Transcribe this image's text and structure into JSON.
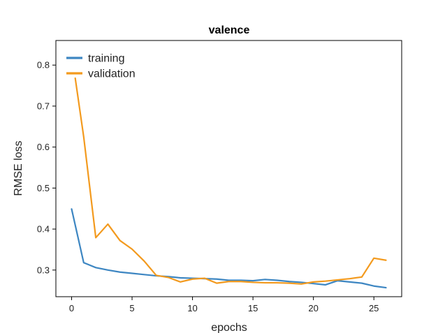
{
  "chart_data": {
    "type": "line",
    "title": "valence",
    "xlabel": "epochs",
    "ylabel": "RMSE loss",
    "xlim": [
      -1.3,
      27.3
    ],
    "ylim": [
      0.235,
      0.86
    ],
    "xticks": [
      0,
      5,
      10,
      15,
      20,
      25
    ],
    "yticks": [
      0.3,
      0.4,
      0.5,
      0.6,
      0.7,
      0.8
    ],
    "ytick_labels": [
      "0.3",
      "0.4",
      "0.5",
      "0.6",
      "0.7",
      "0.8"
    ],
    "grid": false,
    "legend_position": "top-left",
    "series": [
      {
        "name": "training",
        "color": "#3d86c2",
        "x": [
          0,
          1,
          2,
          3,
          4,
          5,
          6,
          7,
          8,
          9,
          10,
          11,
          12,
          13,
          14,
          15,
          16,
          17,
          18,
          19,
          20,
          21,
          22,
          23,
          24,
          25,
          26
        ],
        "y": [
          0.449,
          0.318,
          0.306,
          0.3,
          0.295,
          0.292,
          0.289,
          0.286,
          0.284,
          0.281,
          0.28,
          0.279,
          0.278,
          0.275,
          0.275,
          0.274,
          0.277,
          0.275,
          0.272,
          0.27,
          0.267,
          0.264,
          0.274,
          0.271,
          0.268,
          0.261,
          0.257
        ]
      },
      {
        "name": "validation",
        "color": "#f39a1e",
        "x": [
          0.3,
          1,
          2,
          3,
          4,
          5,
          6,
          7,
          8,
          9,
          10,
          11,
          12,
          13,
          14,
          15,
          16,
          17,
          18,
          19,
          20,
          21,
          22,
          23,
          24,
          25,
          26
        ],
        "y": [
          0.768,
          0.625,
          0.379,
          0.412,
          0.372,
          0.351,
          0.322,
          0.287,
          0.282,
          0.271,
          0.278,
          0.28,
          0.268,
          0.272,
          0.272,
          0.27,
          0.269,
          0.269,
          0.268,
          0.266,
          0.271,
          0.273,
          0.276,
          0.279,
          0.283,
          0.329,
          0.324
        ]
      }
    ]
  }
}
